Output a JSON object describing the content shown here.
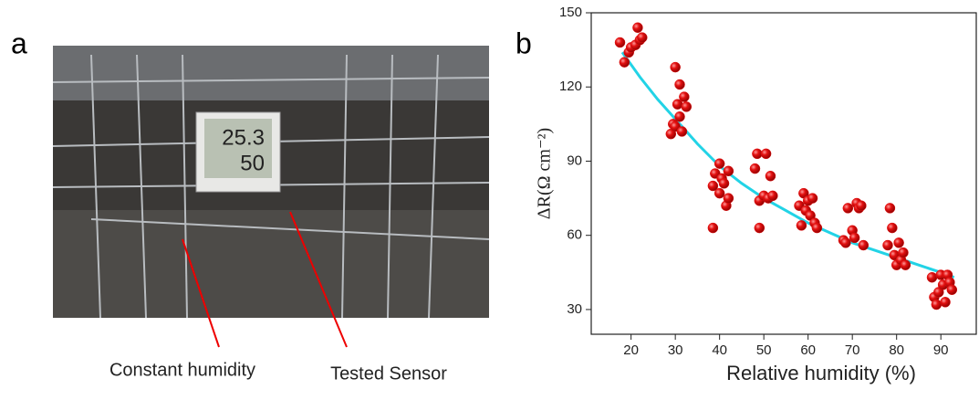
{
  "panels": [
    "a",
    "b"
  ],
  "photo": {
    "display_temperature": "25.3",
    "display_humidity": "50",
    "annotations": [
      "Constant humidity",
      "Tested Sensor"
    ]
  },
  "chart_data": {
    "type": "scatter",
    "x_label": "Relative humidity (%)",
    "y_label": "ΔR(Ω cm⁻²)",
    "xlim": [
      11,
      98
    ],
    "ylim": [
      20,
      150
    ],
    "xticks": [
      20,
      30,
      40,
      50,
      60,
      70,
      80,
      90
    ],
    "yticks": [
      30,
      60,
      90,
      120,
      150
    ],
    "color": "#e31010",
    "x": [
      17.5,
      18.5,
      19.5,
      20,
      21,
      21.5,
      22,
      22.5,
      29,
      29.5,
      30,
      30,
      30.5,
      31,
      31,
      31.5,
      32,
      32.5,
      38.5,
      38.5,
      39,
      40,
      40,
      40.5,
      41,
      41.5,
      42,
      42,
      48,
      48.5,
      49,
      49,
      50,
      50.5,
      51,
      51.5,
      52,
      58,
      58.5,
      59,
      59.5,
      60,
      60.5,
      61,
      61.5,
      62,
      68,
      68.5,
      69,
      70,
      70.5,
      71,
      71.5,
      72,
      72.5,
      78,
      78.5,
      79,
      79.5,
      80,
      80.5,
      81,
      81.5,
      82,
      88,
      88.5,
      89,
      89.5,
      90,
      90.5,
      91,
      91.5,
      92,
      92.5
    ],
    "values": [
      138,
      130,
      134,
      136,
      137,
      144,
      139,
      140,
      101,
      105,
      128,
      104,
      113,
      108,
      121,
      102,
      116,
      112,
      80,
      63,
      85,
      77,
      89,
      83,
      81,
      72,
      75,
      86,
      87,
      93,
      63,
      74,
      76,
      93,
      75,
      84,
      76,
      72,
      64,
      77,
      70,
      74,
      68,
      75,
      65,
      63,
      58,
      57,
      71,
      62,
      59,
      73,
      71,
      72,
      56,
      56,
      71,
      63,
      52,
      48,
      57,
      50,
      53,
      48,
      43,
      35,
      32,
      37,
      44,
      40,
      33,
      44,
      41,
      38
    ],
    "fit": {
      "color": "#22d3e6",
      "x": [
        18,
        22,
        26,
        30,
        35,
        40,
        45,
        50,
        55,
        60,
        65,
        70,
        75,
        80,
        85,
        90,
        93
      ],
      "values": [
        134,
        124,
        115,
        107,
        97,
        88,
        81,
        75,
        70,
        65,
        61,
        57,
        54,
        51,
        48,
        45,
        43
      ]
    }
  }
}
